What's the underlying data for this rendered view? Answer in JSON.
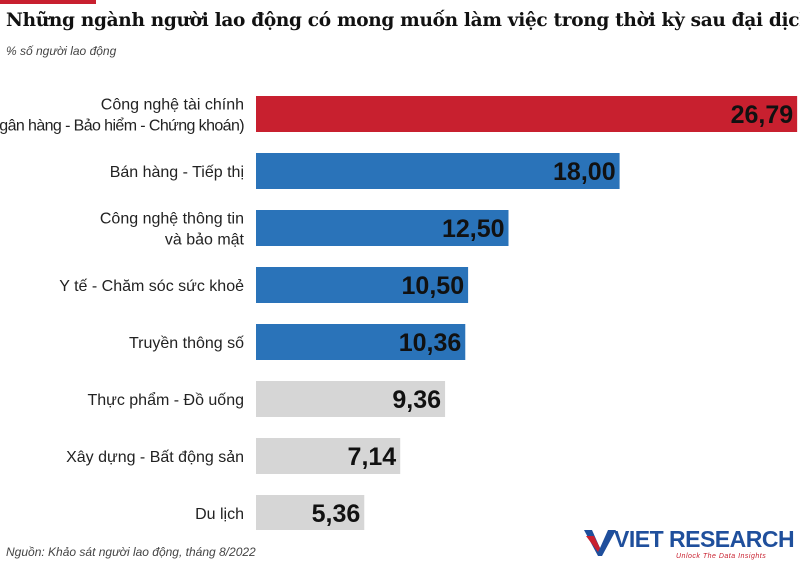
{
  "title": "Những ngành người lao động có mong muốn làm việc trong thời kỳ sau đại dịch",
  "subtitle": "% số người lao động",
  "source": "Nguồn: Khảo sát người lao động, tháng 8/2022",
  "logo": {
    "text": "VIET RESEARCH",
    "tagline": "Unlock The Data Insights"
  },
  "colors": {
    "highlight": "#c8202f",
    "primary": "#2a73b9",
    "muted": "#d6d6d6",
    "text": "#111111"
  },
  "chart_data": {
    "type": "bar",
    "orientation": "horizontal",
    "xlim": [
      0,
      30
    ],
    "categories": [
      [
        "Công nghệ tài chính",
        "(Ngân hàng - Bảo hiểm - Chứng khoán)"
      ],
      [
        "Bán hàng - Tiếp thị"
      ],
      [
        "Công nghệ thông tin",
        "và bảo mật"
      ],
      [
        "Y tế - Chăm sóc sức khoẻ"
      ],
      [
        "Truyền thông số"
      ],
      [
        "Thực phẩm - Đồ uống"
      ],
      [
        "Xây dựng - Bất động sản"
      ],
      [
        "Du lịch"
      ]
    ],
    "values": [
      26.79,
      18.0,
      12.5,
      10.5,
      10.36,
      9.36,
      7.14,
      5.36
    ],
    "value_labels": [
      "26,79",
      "18,00",
      "12,50",
      "10,50",
      "10,36",
      "9,36",
      "7,14",
      "5,36"
    ],
    "bar_colors": [
      "#c8202f",
      "#2a73b9",
      "#2a73b9",
      "#2a73b9",
      "#2a73b9",
      "#d6d6d6",
      "#d6d6d6",
      "#d6d6d6"
    ]
  }
}
